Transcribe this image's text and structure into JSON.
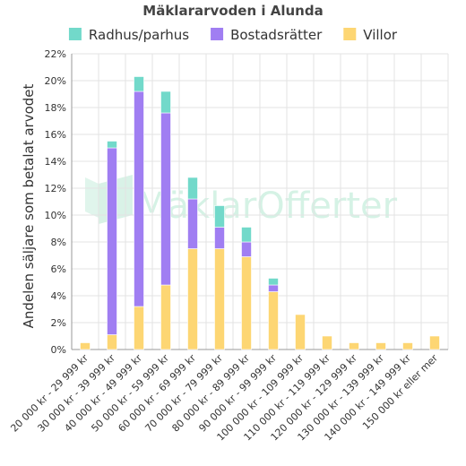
{
  "chart_data": {
    "type": "bar",
    "stacked": true,
    "title": "Mäklararvoden i Alunda",
    "ylabel": "Andelen säljare som betalat arvodet",
    "xlabel": "",
    "ylim": [
      0,
      22
    ],
    "yticks": [
      "0%",
      "2%",
      "4%",
      "6%",
      "8%",
      "10%",
      "12%",
      "14%",
      "16%",
      "18%",
      "20%",
      "22%"
    ],
    "grid": true,
    "legend_position": "top",
    "categories": [
      "20 000 kr - 29 999 kr",
      "30 000 kr - 39 999 kr",
      "40 000 kr - 49 999 kr",
      "50 000 kr - 59 999 kr",
      "60 000 kr - 69 999 kr",
      "70 000 kr - 79 999 kr",
      "80 000 kr - 89 999 kr",
      "90 000 kr - 99 999 kr",
      "100 000 kr - 109 999 kr",
      "110 000 kr - 119 999 kr",
      "120 000 kr - 129 999 kr",
      "130 000 kr - 139 999 kr",
      "140 000 kr - 149 999 kr",
      "150 000 kr eller mer"
    ],
    "series": [
      {
        "name": "Villor",
        "color": "#fdd673",
        "values": [
          0.5,
          1.1,
          3.2,
          4.8,
          7.5,
          7.5,
          6.9,
          4.3,
          2.6,
          1.0,
          0.5,
          0.5,
          0.5,
          1.0
        ]
      },
      {
        "name": "Bostadsrätter",
        "color": "#a07ef2",
        "values": [
          0,
          13.9,
          16.0,
          12.8,
          3.7,
          1.6,
          1.1,
          0.5,
          0,
          0,
          0,
          0,
          0,
          0
        ]
      },
      {
        "name": "Radhus/parhus",
        "color": "#72d9ca",
        "values": [
          0,
          0.5,
          1.1,
          1.6,
          1.6,
          1.6,
          1.1,
          0.5,
          0,
          0,
          0,
          0,
          0,
          0
        ]
      }
    ],
    "legend_order": [
      "Radhus/parhus",
      "Bostadsrätter",
      "Villor"
    ]
  },
  "watermark": {
    "text_a": "Mäklar",
    "text_b": "Offerter",
    "color": "#c8eedd"
  }
}
